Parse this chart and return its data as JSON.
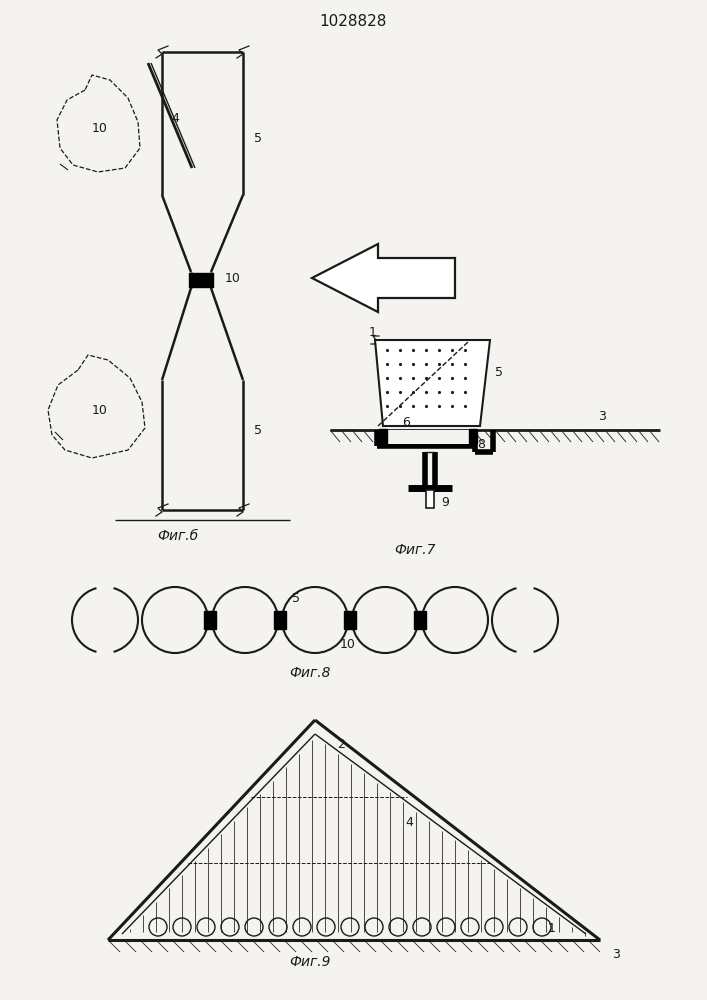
{
  "title": "1028828",
  "bg_color": "#f5f3ef",
  "line_color": "#1a1a1a",
  "fig6_caption": "Фиг.б",
  "fig7_caption": "Фиг.7",
  "fig8_caption": "Фиг.8",
  "fig9_caption": "Фиг.9",
  "label_4": "4",
  "label_5": "5",
  "label_10": "10",
  "label_1": "1",
  "label_2": "2",
  "label_3": "3",
  "label_6": "6",
  "label_8": "8",
  "label_9": "9"
}
